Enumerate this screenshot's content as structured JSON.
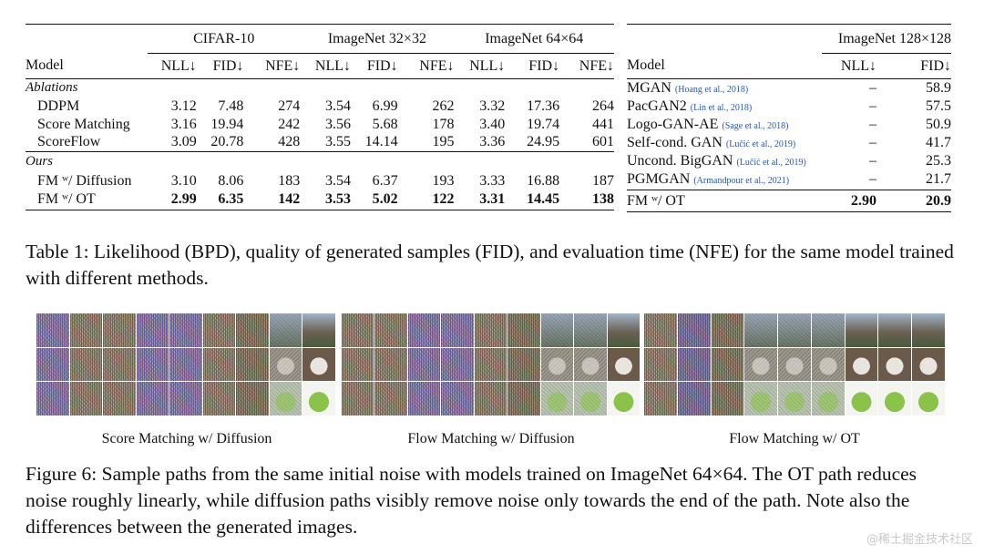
{
  "table_left": {
    "groups": [
      "CIFAR-10",
      "ImageNet 32×32",
      "ImageNet 64×64"
    ],
    "metrics": [
      "NLL↓",
      "FID↓",
      "NFE↓"
    ],
    "model_header": "Model",
    "section_ablations": "Ablations",
    "section_ours": "Ours",
    "rows": [
      {
        "model": "DDPM",
        "vals": [
          "3.12",
          "7.48",
          "274",
          "3.54",
          "6.99",
          "262",
          "3.32",
          "17.36",
          "264"
        ]
      },
      {
        "model": "Score Matching",
        "vals": [
          "3.16",
          "19.94",
          "242",
          "3.56",
          "5.68",
          "178",
          "3.40",
          "19.74",
          "441"
        ]
      },
      {
        "model": "ScoreFlow",
        "vals": [
          "3.09",
          "20.78",
          "428",
          "3.55",
          "14.14",
          "195",
          "3.36",
          "24.95",
          "601"
        ]
      },
      {
        "model": "FM ʷ/ Diffusion",
        "vals": [
          "3.10",
          "8.06",
          "183",
          "3.54",
          "6.37",
          "193",
          "3.33",
          "16.88",
          "187"
        ]
      },
      {
        "model": "FM ʷ/ OT",
        "vals": [
          "2.99",
          "6.35",
          "142",
          "3.53",
          "5.02",
          "122",
          "3.31",
          "14.45",
          "138"
        ]
      }
    ]
  },
  "table_right": {
    "group": "ImageNet 128×128",
    "model_header": "Model",
    "metrics": [
      "NLL↓",
      "FID↓"
    ],
    "rows": [
      {
        "model": "MGAN",
        "cite": "(Hoang et al., 2018)",
        "nll": "–",
        "fid": "58.9"
      },
      {
        "model": "PacGAN2",
        "cite": "(Lin et al., 2018)",
        "nll": "–",
        "fid": "57.5"
      },
      {
        "model": "Logo-GAN-AE",
        "cite": "(Sage et al., 2018)",
        "nll": "–",
        "fid": "50.9"
      },
      {
        "model": "Self-cond. GAN",
        "cite": "(Lučić et al., 2019)",
        "nll": "–",
        "fid": "41.7"
      },
      {
        "model": "Uncond. BigGAN",
        "cite": "(Lučić et al., 2019)",
        "nll": "–",
        "fid": "25.3"
      },
      {
        "model": "PGMGAN",
        "cite": "(Armandpour et al., 2021)",
        "nll": "–",
        "fid": "21.7"
      },
      {
        "model": "FM ʷ/ OT",
        "cite": "",
        "nll": "2.90",
        "fid": "20.9"
      }
    ]
  },
  "table_caption": "Table 1: Likelihood (BPD), quality of generated samples (FID), and evaluation time (NFE) for the same model trained with different methods.",
  "figure": {
    "labels": [
      "Score Matching w/ Diffusion",
      "Flow Matching w/ Diffusion",
      "Flow Matching w/ OT"
    ],
    "caption": "Figure 6: Sample paths from the same initial noise with models trained on ImageNet 64×64. The OT path reduces noise roughly linearly, while diffusion paths visibly remove noise only towards the end of the path. Note also the differences between the generated images."
  },
  "watermark": "@稀土掘金技术社区"
}
